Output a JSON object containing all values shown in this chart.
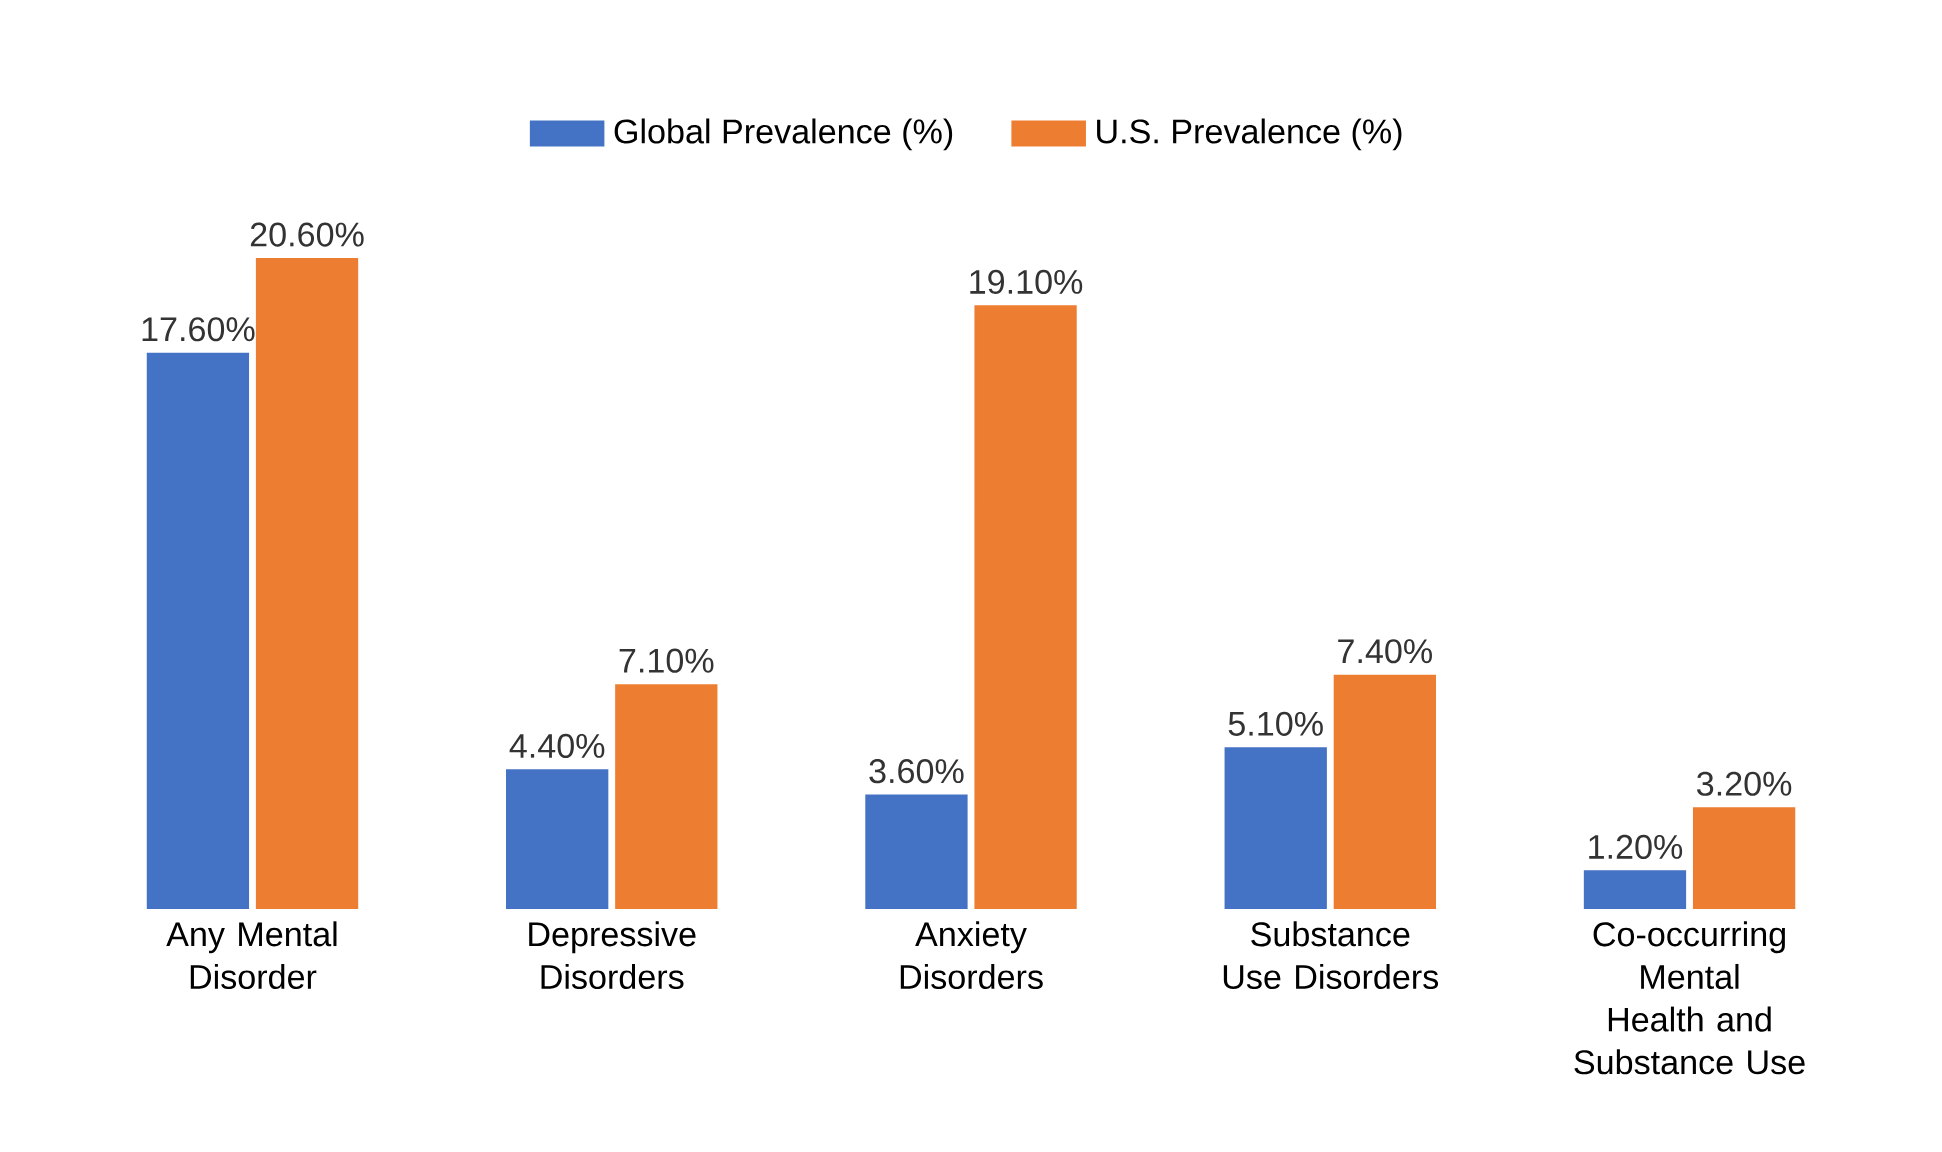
{
  "chart_data": {
    "type": "bar",
    "categories": [
      "Any Mental Disorder",
      "Depressive Disorders",
      "Anxiety Disorders",
      "Substance Use Disorders",
      "Co-occurring Mental Health and Substance Use"
    ],
    "series": [
      {
        "name": "Global Prevalence (%)",
        "color": "#4472c4",
        "values": [
          17.6,
          4.4,
          3.6,
          5.1,
          1.2
        ],
        "value_labels": [
          "17.60%",
          "4.40%",
          "3.60%",
          "5.10%",
          "1.20%"
        ]
      },
      {
        "name": "U.S. Prevalence (%)",
        "color": "#ed7d31",
        "values": [
          20.6,
          7.1,
          19.1,
          7.4,
          3.2
        ],
        "value_labels": [
          "20.60%",
          "7.10%",
          "19.10%",
          "7.40%",
          "3.20%"
        ]
      }
    ],
    "legend": "top"
  }
}
